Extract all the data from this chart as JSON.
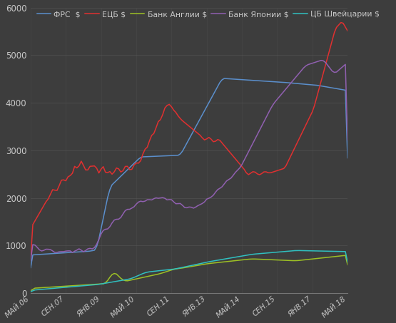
{
  "background_color": "#3d3d3d",
  "plot_bg_color": "#3d3d3d",
  "grid_color": "#555555",
  "text_color": "#c8c8c8",
  "legend_labels": [
    "ФРС  $",
    "ЕЦБ $",
    "Банк Англии $",
    "Банк Японии $",
    "ЦБ Швейцарии $"
  ],
  "line_colors": [
    "#5b8fcc",
    "#e03030",
    "#9dc025",
    "#9060b0",
    "#30c0c0"
  ],
  "x_labels": [
    "МАЙ.06",
    "СЕН.07",
    "ЯНВ.09",
    "МАЙ.10",
    "СЕН.11",
    "ЯНВ.13",
    "МАЙ.14",
    "СЕН.15",
    "ЯНВ.17",
    "МАЙ.18"
  ],
  "x_ticks": [
    0,
    16,
    32,
    48,
    64,
    80,
    96,
    112,
    128,
    144
  ],
  "ylim": [
    0,
    6000
  ],
  "yticks": [
    0,
    1000,
    2000,
    3000,
    4000,
    5000,
    6000
  ],
  "figsize": [
    5.55,
    4.53
  ],
  "dpi": 100
}
